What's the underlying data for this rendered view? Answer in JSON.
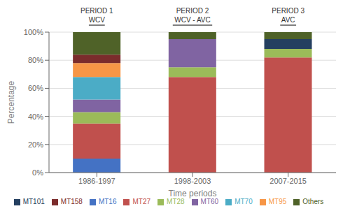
{
  "chart_data": {
    "type": "bar",
    "stacked": true,
    "grid": true,
    "legend": "bottom",
    "xlabel": "Time periods",
    "ylabel": "Percentage",
    "categories": [
      "1986-1997",
      "1998-2003",
      "2007-2015"
    ],
    "series": [
      {
        "name": "MT16",
        "color": "#4472C4",
        "values": [
          10,
          0,
          0
        ]
      },
      {
        "name": "MT27",
        "color": "#C0504D",
        "values": [
          25,
          68,
          82
        ]
      },
      {
        "name": "MT28",
        "color": "#9BBB59",
        "values": [
          8,
          7,
          6
        ]
      },
      {
        "name": "MT60",
        "color": "#8064A2",
        "values": [
          9,
          20,
          0
        ]
      },
      {
        "name": "MT70",
        "color": "#4BACC6",
        "values": [
          16,
          0,
          0
        ]
      },
      {
        "name": "MT95",
        "color": "#F79646",
        "values": [
          10,
          0,
          0
        ]
      },
      {
        "name": "MT101",
        "color": "#243F60",
        "values": [
          0,
          0,
          7
        ]
      },
      {
        "name": "MT158",
        "color": "#7B2C2C",
        "values": [
          6,
          0,
          0
        ]
      },
      {
        "name": "Others",
        "color": "#4F6228",
        "values": [
          16,
          5,
          5
        ]
      }
    ],
    "ylim": [
      0,
      100
    ],
    "yticks": [
      {
        "value": 0,
        "label": "0%"
      },
      {
        "value": 20,
        "label": "20%"
      },
      {
        "value": 40,
        "label": "40%"
      },
      {
        "value": 60,
        "label": "60%"
      },
      {
        "value": 80,
        "label": "80%"
      },
      {
        "value": 100,
        "label": "100%"
      }
    ],
    "annotations": [
      {
        "x": "1986-1997",
        "text": "PERIOD 1"
      },
      {
        "x": "1986-1997",
        "text": "WCV"
      },
      {
        "x": "1998-2003",
        "text": "PERIOD 2"
      },
      {
        "x": "1998-2003",
        "text": "WCV - AVC"
      },
      {
        "x": "2007-2015",
        "text": "PERIOD 3"
      },
      {
        "x": "2007-2015",
        "text": "AVC"
      }
    ]
  }
}
